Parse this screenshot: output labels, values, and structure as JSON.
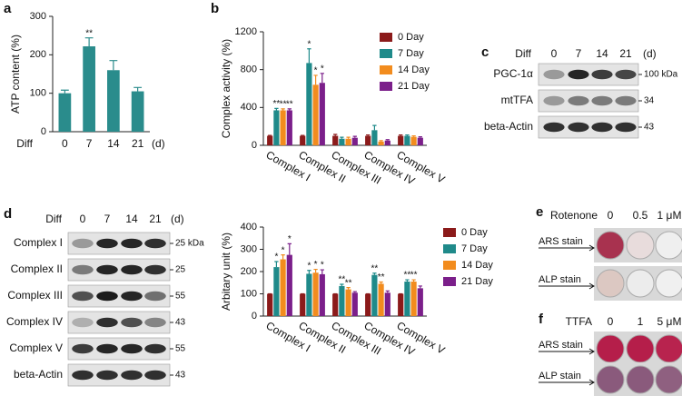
{
  "chart_data": [
    {
      "type": "bar",
      "y_label": "ATP content (%)",
      "x_label": "Diff",
      "x_unit": "(d)",
      "categories": [
        "0",
        "7",
        "14",
        "21"
      ],
      "values": [
        100,
        222,
        160,
        105
      ],
      "errors": [
        8,
        22,
        25,
        10
      ],
      "significance": [
        null,
        "**",
        null,
        null
      ],
      "color": "#2a8c8c",
      "ylim": [
        0,
        300
      ],
      "yticks": [
        0,
        100,
        200,
        300
      ]
    },
    {
      "type": "bar",
      "y_label": "Complex activity (%)",
      "categories": [
        "Complex I",
        "Complex II",
        "Complex III",
        "Complex IV",
        "Complex V"
      ],
      "series": [
        {
          "name": "0 Day",
          "color": "#8b1a1a",
          "values": [
            100,
            100,
            100,
            100,
            100
          ],
          "errors": [
            5,
            5,
            15,
            10,
            10
          ],
          "significance": [
            null,
            null,
            null,
            null,
            null
          ]
        },
        {
          "name": "7 Day",
          "color": "#1f8a8a",
          "values": [
            370,
            870,
            70,
            160,
            100
          ],
          "errors": [
            20,
            150,
            15,
            50,
            10
          ],
          "significance": [
            "**",
            "*",
            null,
            null,
            null
          ]
        },
        {
          "name": "14 Day",
          "color": "#f28c1e",
          "values": [
            370,
            640,
            70,
            40,
            90
          ],
          "errors": [
            15,
            100,
            15,
            10,
            10
          ],
          "significance": [
            "**",
            "*",
            null,
            null,
            null
          ]
        },
        {
          "name": "21 Day",
          "color": "#7b1f8a",
          "values": [
            370,
            660,
            80,
            50,
            80
          ],
          "errors": [
            15,
            100,
            15,
            10,
            10
          ],
          "significance": [
            "**",
            "*",
            null,
            null,
            null
          ]
        }
      ],
      "ylim": [
        0,
        1200
      ],
      "yticks": [
        0,
        400,
        800,
        1200
      ],
      "legend": "upper right"
    },
    {
      "type": "bar",
      "y_label": "Arbitary unit (%)",
      "categories": [
        "Complex I",
        "Complex II",
        "Complex III",
        "Complex IV",
        "Complex V"
      ],
      "series": [
        {
          "name": "0 Day",
          "color": "#8b1a1a",
          "values": [
            100,
            100,
            100,
            100,
            100
          ],
          "errors": [
            0,
            0,
            0,
            0,
            0
          ],
          "significance": [
            null,
            null,
            null,
            null,
            null
          ]
        },
        {
          "name": "7 Day",
          "color": "#1f8a8a",
          "values": [
            220,
            190,
            135,
            185,
            155
          ],
          "errors": [
            25,
            15,
            8,
            8,
            8
          ],
          "significance": [
            "*",
            "*",
            "**",
            "**",
            "**"
          ]
        },
        {
          "name": "14 Day",
          "color": "#f28c1e",
          "values": [
            255,
            195,
            120,
            145,
            155
          ],
          "errors": [
            20,
            15,
            8,
            8,
            8
          ],
          "significance": [
            "*",
            "*",
            "**",
            "**",
            "**"
          ]
        },
        {
          "name": "21 Day",
          "color": "#7b1f8a",
          "values": [
            275,
            188,
            105,
            105,
            125
          ],
          "errors": [
            50,
            20,
            5,
            8,
            10
          ],
          "significance": [
            "*",
            "*",
            null,
            null,
            null
          ]
        }
      ],
      "ylim": [
        0,
        400
      ],
      "yticks": [
        0,
        100,
        200,
        300,
        400
      ],
      "legend": "right"
    }
  ],
  "panel_labels": [
    "a",
    "b",
    "c",
    "d",
    "e",
    "f"
  ],
  "blot_c": {
    "header": [
      "Diff",
      "0",
      "7",
      "14",
      "21",
      "(d)"
    ],
    "rows": [
      {
        "label": "PGC-1α",
        "marker": "100 kDa"
      },
      {
        "label": "mtTFA",
        "marker": "34"
      },
      {
        "label": "beta-Actin",
        "marker": "43"
      }
    ]
  },
  "blot_d": {
    "header": [
      "Diff",
      "0",
      "7",
      "14",
      "21",
      "(d)"
    ],
    "rows": [
      {
        "label": "Complex I",
        "marker": "25 kDa"
      },
      {
        "label": "Complex II",
        "marker": "25"
      },
      {
        "label": "Complex III",
        "marker": "55"
      },
      {
        "label": "Complex IV",
        "marker": "43"
      },
      {
        "label": "Complex V",
        "marker": "55"
      },
      {
        "label": "beta-Actin",
        "marker": "43"
      }
    ]
  },
  "stain_e": {
    "header": [
      "Rotenone",
      "0",
      "0.5",
      "1 μM"
    ],
    "rows": [
      "ARS stain",
      "ALP stain"
    ]
  },
  "stain_f": {
    "header": [
      "TTFA",
      "0",
      "1",
      "5 μM"
    ],
    "rows": [
      "ARS stain",
      "ALP stain"
    ]
  }
}
